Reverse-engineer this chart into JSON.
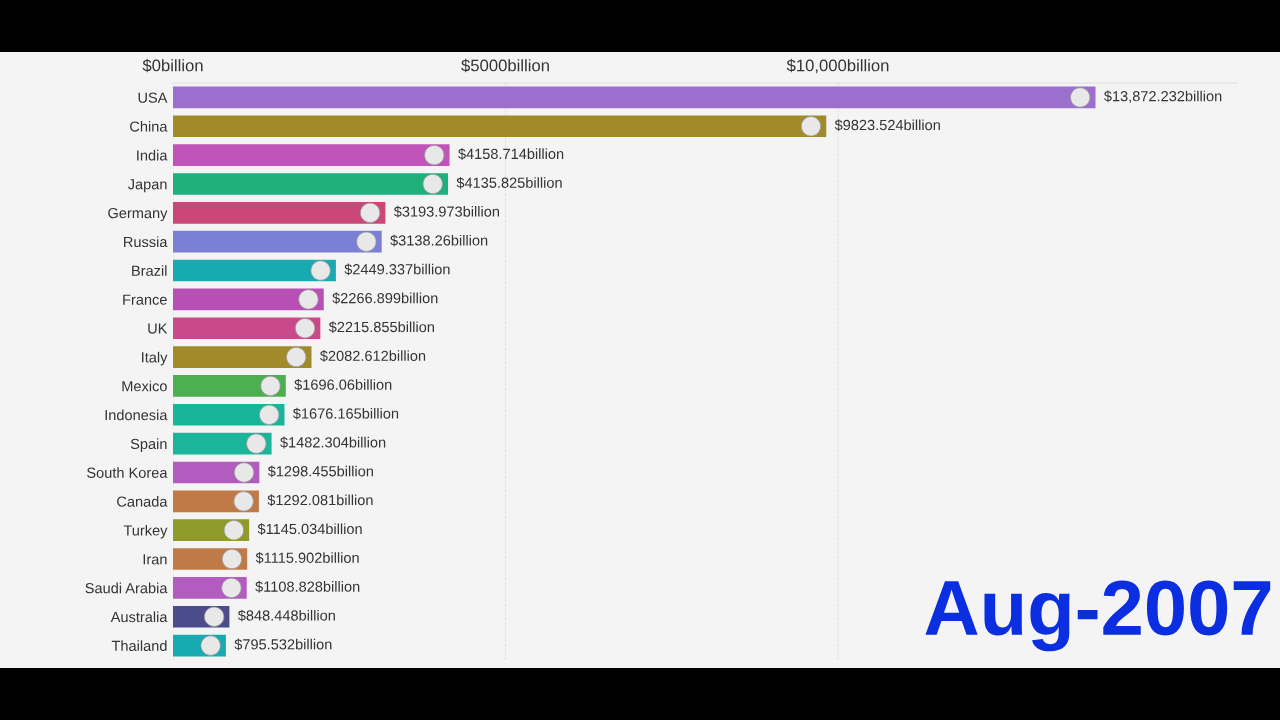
{
  "chart_data": {
    "type": "bar",
    "orientation": "horizontal",
    "categories": [
      "USA",
      "China",
      "India",
      "Japan",
      "Germany",
      "Russia",
      "Brazil",
      "France",
      "UK",
      "Italy",
      "Mexico",
      "Indonesia",
      "Spain",
      "South Korea",
      "Canada",
      "Turkey",
      "Iran",
      "Saudi Arabia",
      "Australia",
      "Thailand"
    ],
    "values": [
      13872.232,
      9823.524,
      4158.714,
      4135.825,
      3193.973,
      3138.26,
      2449.337,
      2266.899,
      2215.855,
      2082.612,
      1696.06,
      1676.165,
      1482.304,
      1298.455,
      1292.081,
      1145.034,
      1115.902,
      1108.828,
      848.448,
      795.532
    ],
    "colors": [
      "#9b6fce",
      "#a08a2a",
      "#c054b8",
      "#1db07a",
      "#c94878",
      "#7b7fd6",
      "#17aab0",
      "#b84fb4",
      "#c94a8a",
      "#a08a2a",
      "#4caf50",
      "#19b59a",
      "#1ab59a",
      "#b35cc0",
      "#c07a48",
      "#8f9a2a",
      "#c07a48",
      "#b35cc0",
      "#4a4c8c",
      "#17aab0"
    ],
    "value_labels": [
      "$13,872.232billion",
      "$9823.524billion",
      "$4158.714billion",
      "$4135.825billion",
      "$3193.973billion",
      "$3138.26billion",
      "$2449.337billion",
      "$2266.899billion",
      "$2215.855billion",
      "$2082.612billion",
      "$1696.06billion",
      "$1676.165billion",
      "$1482.304billion",
      "$1298.455billion",
      "$1292.081billion",
      "$1145.034billion",
      "$1115.902billion",
      "$1108.828billion",
      "$848.448billion",
      "$795.532billion"
    ],
    "xlim": [
      0,
      16000
    ],
    "xticks": [
      {
        "value": 0,
        "label": "$0billion"
      },
      {
        "value": 5000,
        "label": "$5000billion"
      },
      {
        "value": 10000,
        "label": "$10,000billion"
      }
    ],
    "grid": "x",
    "annotations": [
      "Aug-2007"
    ]
  }
}
